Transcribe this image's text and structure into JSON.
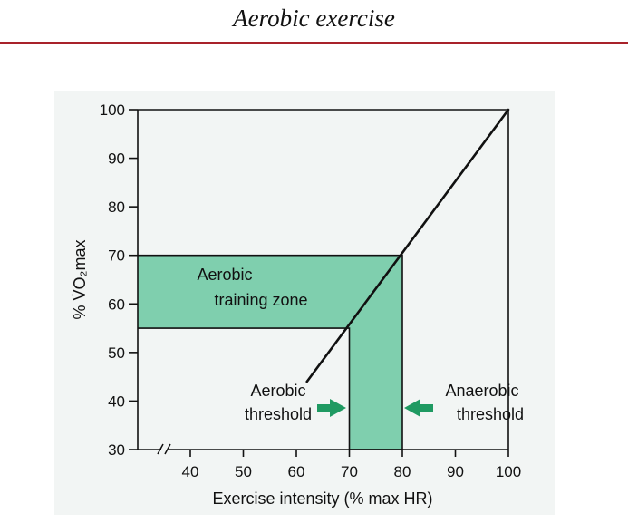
{
  "page": {
    "title": "Aerobic exercise",
    "accent_color": "#a8222a"
  },
  "chart_data": {
    "type": "line",
    "xlabel": "Exercise intensity (% max HR)",
    "ylabel": "% V̇O₂max",
    "xlim": [
      30,
      100
    ],
    "ylim": [
      30,
      100
    ],
    "x_axis_break": true,
    "x_ticks": [
      40,
      50,
      60,
      70,
      80,
      90,
      100
    ],
    "y_ticks": [
      30,
      40,
      50,
      60,
      70,
      80,
      90,
      100
    ],
    "grid": false,
    "series": [
      {
        "color": "#111111",
        "points": [
          {
            "x": 62,
            "y": 44
          },
          {
            "x": 100,
            "y": 100
          }
        ]
      }
    ],
    "zones": {
      "fill_color": "#7fcfae",
      "edge_color": "#111111",
      "horizontal": {
        "x_from": 30,
        "x_to": 80,
        "y_from": 55,
        "y_to": 70
      },
      "vertical": {
        "x_from": 70,
        "x_to": 80,
        "y_from": 30,
        "y_to": 70
      }
    },
    "annotations": {
      "training_zone": {
        "line1": "Aerobic",
        "line2": "training zone"
      },
      "aerobic_threshold": {
        "line1": "Aerobic",
        "line2": "threshold"
      },
      "anaerobic_threshold": {
        "line1": "Anaerobic",
        "line2": "threshold"
      },
      "arrow_color": "#1f9a62"
    }
  }
}
